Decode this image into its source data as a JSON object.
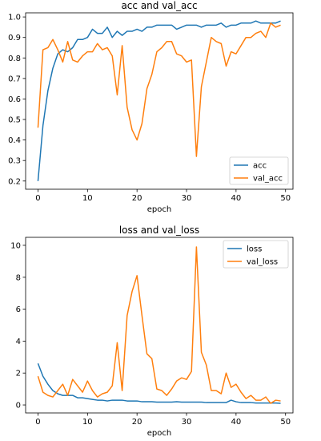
{
  "chart_data": [
    {
      "type": "line",
      "title": "acc and val_acc",
      "xlabel": "epoch",
      "ylabel": "",
      "xlim": [
        -2.5,
        51.5
      ],
      "ylim": [
        0.16,
        1.02
      ],
      "xticks": [
        0,
        10,
        20,
        30,
        40,
        50
      ],
      "yticks": [
        0.2,
        0.3,
        0.4,
        0.5,
        0.6,
        0.7,
        0.8,
        0.9,
        1.0
      ],
      "ytick_labels": [
        "0.2",
        "0.3",
        "0.4",
        "0.5",
        "0.6",
        "0.7",
        "0.8",
        "0.9",
        "1.0"
      ],
      "legend_position": "bottom-right",
      "x": [
        0,
        1,
        2,
        3,
        4,
        5,
        6,
        7,
        8,
        9,
        10,
        11,
        12,
        13,
        14,
        15,
        16,
        17,
        18,
        19,
        20,
        21,
        22,
        23,
        24,
        25,
        26,
        27,
        28,
        29,
        30,
        31,
        32,
        33,
        34,
        35,
        36,
        37,
        38,
        39,
        40,
        41,
        42,
        43,
        44,
        45,
        46,
        47,
        48,
        49
      ],
      "series": [
        {
          "name": "acc",
          "color": "#1f77b4",
          "values": [
            0.2,
            0.47,
            0.64,
            0.75,
            0.82,
            0.84,
            0.83,
            0.85,
            0.89,
            0.89,
            0.9,
            0.94,
            0.92,
            0.92,
            0.95,
            0.9,
            0.93,
            0.91,
            0.93,
            0.93,
            0.94,
            0.93,
            0.95,
            0.95,
            0.96,
            0.96,
            0.96,
            0.96,
            0.94,
            0.95,
            0.96,
            0.96,
            0.96,
            0.95,
            0.96,
            0.96,
            0.96,
            0.97,
            0.95,
            0.96,
            0.96,
            0.97,
            0.97,
            0.97,
            0.98,
            0.97,
            0.97,
            0.97,
            0.97,
            0.98
          ]
        },
        {
          "name": "val_acc",
          "color": "#ff7f0e",
          "values": [
            0.46,
            0.84,
            0.85,
            0.89,
            0.84,
            0.78,
            0.88,
            0.79,
            0.78,
            0.81,
            0.83,
            0.83,
            0.87,
            0.84,
            0.85,
            0.81,
            0.62,
            0.86,
            0.56,
            0.45,
            0.4,
            0.48,
            0.65,
            0.72,
            0.83,
            0.85,
            0.88,
            0.88,
            0.82,
            0.81,
            0.78,
            0.79,
            0.32,
            0.66,
            0.78,
            0.9,
            0.88,
            0.87,
            0.76,
            0.83,
            0.82,
            0.86,
            0.9,
            0.9,
            0.92,
            0.93,
            0.9,
            0.97,
            0.95,
            0.96
          ]
        }
      ]
    },
    {
      "type": "line",
      "title": "loss and val_loss",
      "xlabel": "epoch",
      "ylabel": "",
      "xlim": [
        -2.5,
        51.5
      ],
      "ylim": [
        -0.5,
        10.5
      ],
      "xticks": [
        0,
        10,
        20,
        30,
        40,
        50
      ],
      "yticks": [
        0,
        2,
        4,
        6,
        8,
        10
      ],
      "ytick_labels": [
        "0",
        "2",
        "4",
        "6",
        "8",
        "10"
      ],
      "legend_position": "top-right",
      "x": [
        0,
        1,
        2,
        3,
        4,
        5,
        6,
        7,
        8,
        9,
        10,
        11,
        12,
        13,
        14,
        15,
        16,
        17,
        18,
        19,
        20,
        21,
        22,
        23,
        24,
        25,
        26,
        27,
        28,
        29,
        30,
        31,
        32,
        33,
        34,
        35,
        36,
        37,
        38,
        39,
        40,
        41,
        42,
        43,
        44,
        45,
        46,
        47,
        48,
        49
      ],
      "series": [
        {
          "name": "loss",
          "color": "#1f77b4",
          "values": [
            2.6,
            1.8,
            1.3,
            0.9,
            0.7,
            0.6,
            0.6,
            0.6,
            0.45,
            0.45,
            0.4,
            0.35,
            0.3,
            0.3,
            0.25,
            0.3,
            0.3,
            0.3,
            0.25,
            0.25,
            0.25,
            0.2,
            0.2,
            0.2,
            0.18,
            0.18,
            0.18,
            0.18,
            0.2,
            0.18,
            0.18,
            0.18,
            0.18,
            0.18,
            0.15,
            0.15,
            0.15,
            0.15,
            0.15,
            0.3,
            0.2,
            0.15,
            0.15,
            0.15,
            0.12,
            0.12,
            0.12,
            0.12,
            0.12,
            0.1
          ]
        },
        {
          "name": "val_loss",
          "color": "#ff7f0e",
          "values": [
            1.8,
            0.8,
            0.6,
            0.5,
            0.9,
            1.3,
            0.6,
            1.6,
            1.2,
            0.8,
            1.5,
            0.9,
            0.5,
            0.7,
            0.8,
            1.2,
            3.9,
            0.9,
            5.6,
            7.1,
            8.1,
            5.6,
            3.2,
            2.9,
            1.0,
            0.9,
            0.6,
            1.0,
            1.5,
            1.7,
            1.6,
            2.1,
            9.9,
            3.3,
            2.5,
            0.9,
            0.9,
            0.7,
            2.0,
            1.1,
            1.3,
            0.8,
            0.4,
            0.6,
            0.3,
            0.3,
            0.5,
            0.1,
            0.3,
            0.25
          ]
        }
      ]
    }
  ]
}
